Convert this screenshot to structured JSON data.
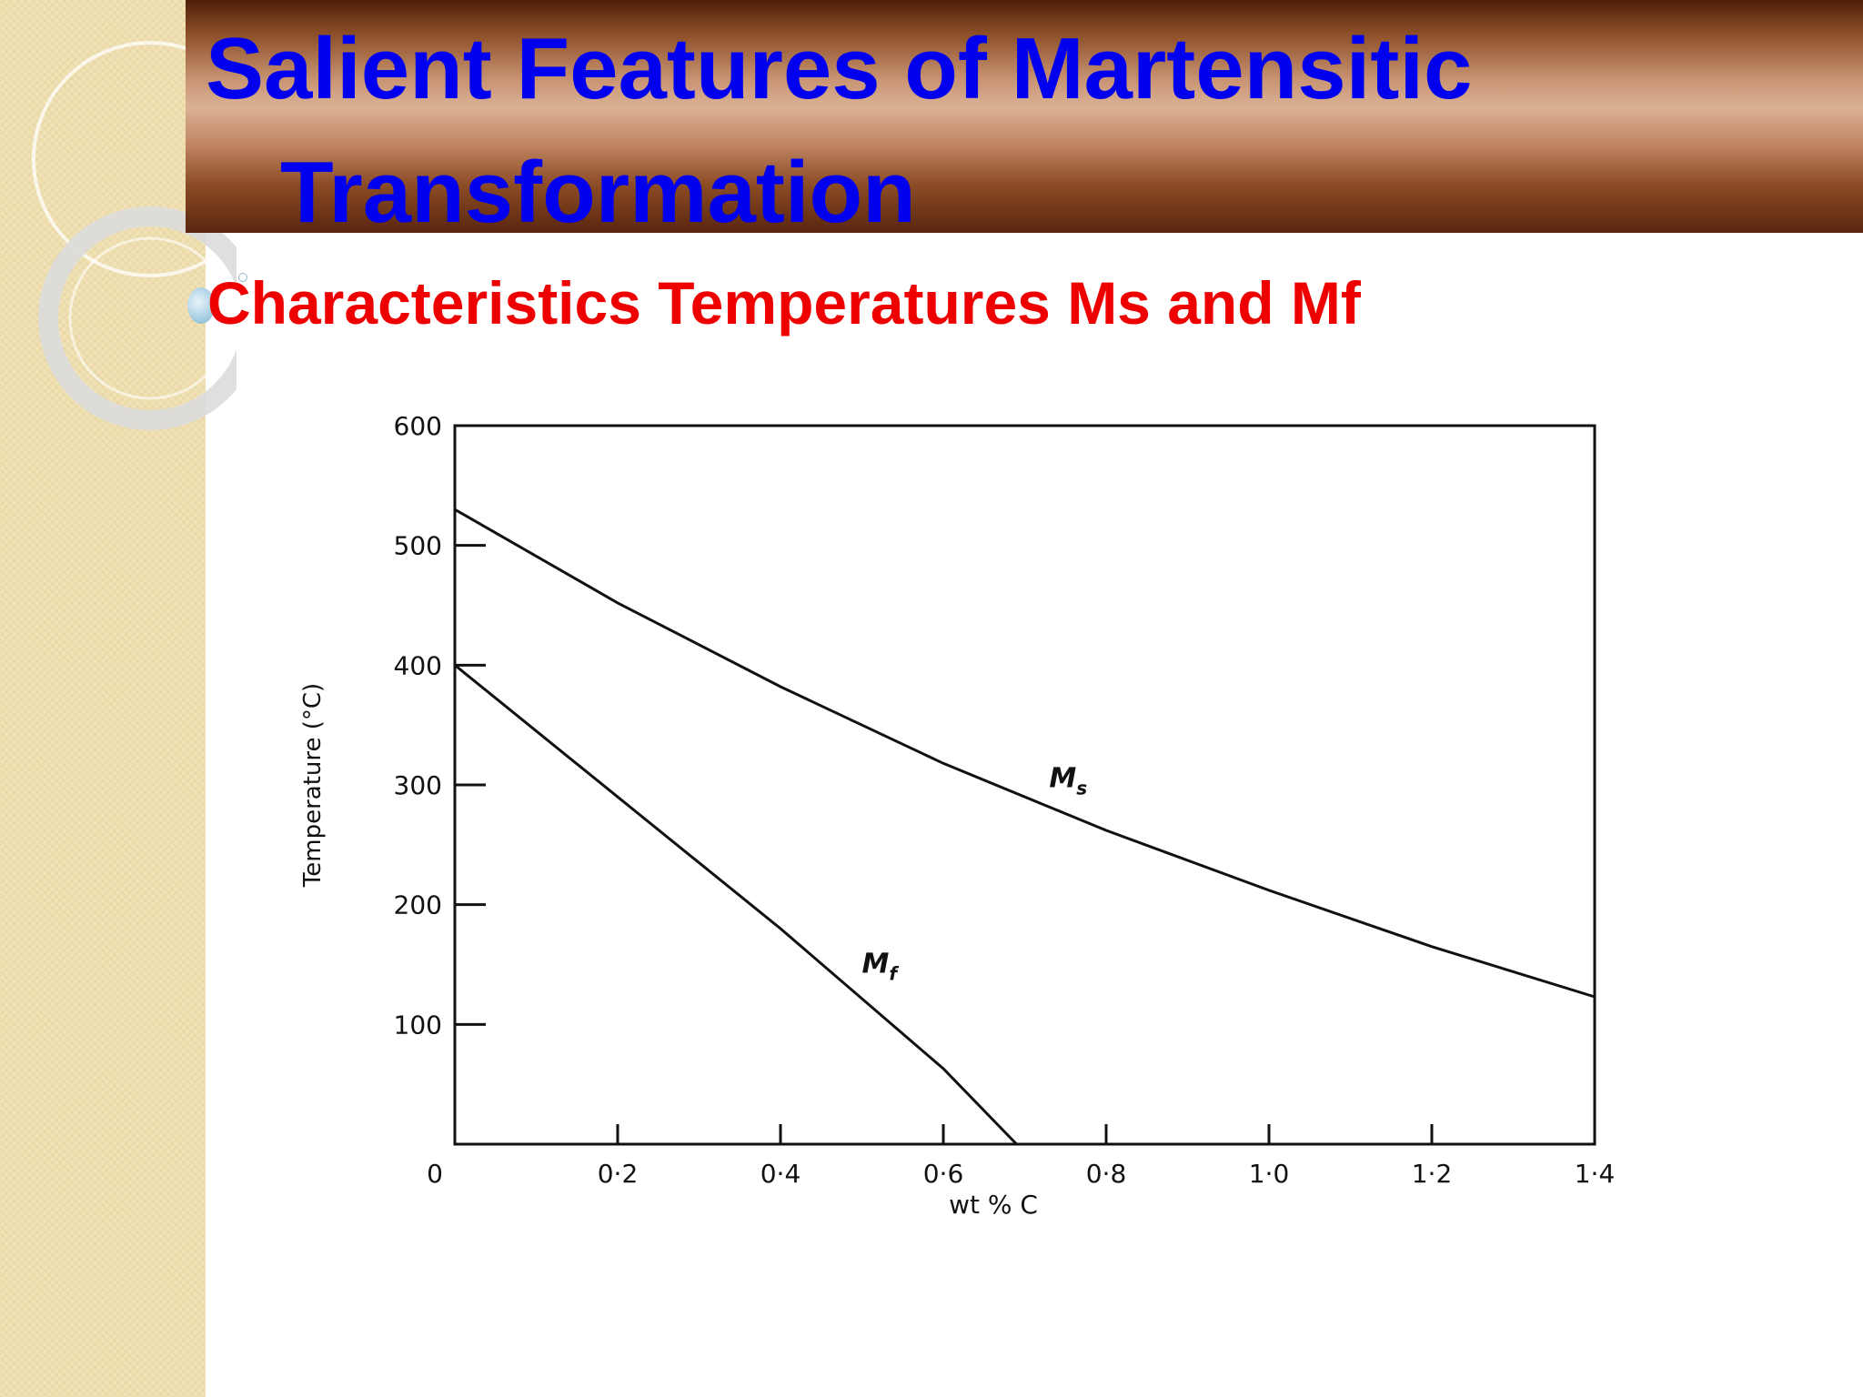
{
  "slide": {
    "title_line1": "Salient Features of Martensitic",
    "title_line2": "Transformation",
    "subtitle": "Characteristics Temperatures Ms and Mf"
  },
  "colors": {
    "title": "#0000ee",
    "subtitle": "#ee0000",
    "header_band": "#8b4d25",
    "left_strip": "#f1e2b6"
  },
  "chart_data": {
    "type": "line",
    "xlabel": "wt % C",
    "ylabel": "Temperature (°C)",
    "xlim": [
      0,
      1.4
    ],
    "ylim": [
      0,
      600
    ],
    "x_ticks": [
      0,
      0.2,
      0.4,
      0.6,
      0.8,
      1.0,
      1.2,
      1.4
    ],
    "x_tick_labels": [
      "0",
      "0·2",
      "0·4",
      "0·6",
      "0·8",
      "1·0",
      "1·2",
      "1·4"
    ],
    "y_ticks": [
      100,
      200,
      300,
      400,
      500,
      600
    ],
    "y_tick_labels": [
      "100",
      "200",
      "300",
      "400",
      "500",
      "600"
    ],
    "grid": false,
    "series": [
      {
        "name": "Ms",
        "label_main": "M",
        "label_sub": "s",
        "label_at": [
          0.73,
          298
        ],
        "x": [
          0,
          0.2,
          0.4,
          0.6,
          0.8,
          1.0,
          1.2,
          1.4
        ],
        "y": [
          530,
          452,
          382,
          318,
          262,
          212,
          165,
          123
        ]
      },
      {
        "name": "Mf",
        "label_main": "M",
        "label_sub": "f",
        "label_at": [
          0.5,
          143
        ],
        "x": [
          0,
          0.2,
          0.4,
          0.6,
          0.69
        ],
        "y": [
          400,
          290,
          180,
          63,
          0
        ]
      }
    ]
  }
}
